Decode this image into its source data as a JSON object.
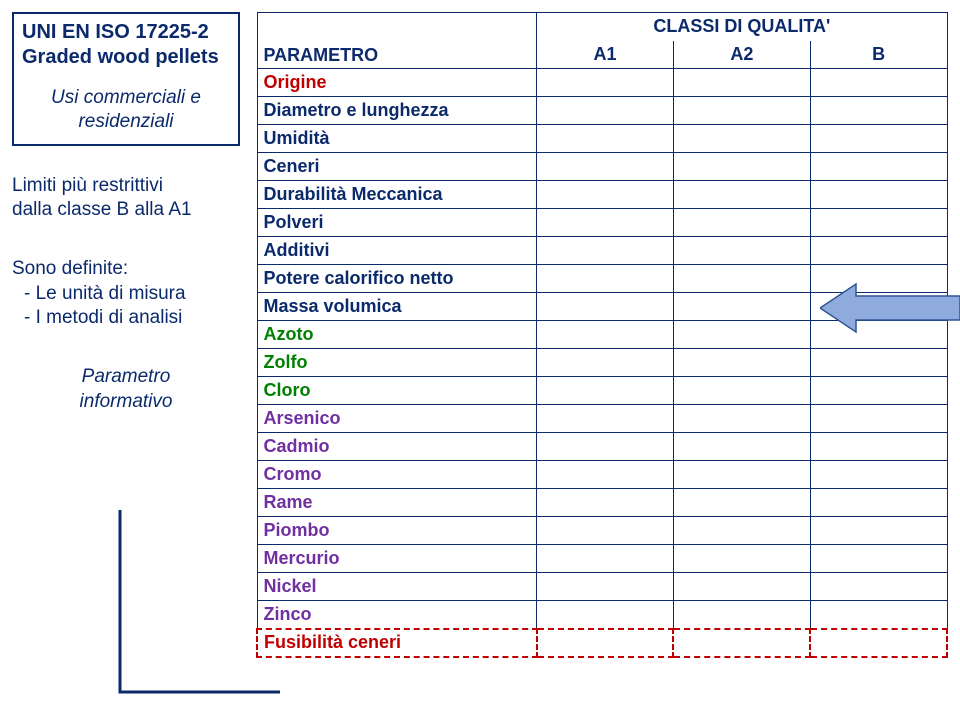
{
  "left": {
    "title_line1": "UNI EN ISO 17225-2",
    "title_line2": "Graded wood pellets",
    "sub_line1": "Usi commerciali e",
    "sub_line2": "residenziali",
    "limits_line1": "Limiti più restrittivi",
    "limits_line2": "dalla classe B alla A1",
    "defs_head": "Sono definite:",
    "defs_item1": "-  Le unità di misura",
    "defs_item2": "-  I metodi di analisi",
    "param_info_l1": "Parametro",
    "param_info_l2": "informativo"
  },
  "table": {
    "super_header": "CLASSI DI QUALITA'",
    "col_param": "PARAMETRO",
    "col_a1": "A1",
    "col_a2": "A2",
    "col_b": "B",
    "rows": [
      {
        "label": "Origine",
        "color": "c-red"
      },
      {
        "label": "Diametro e lunghezza",
        "color": "c-blue"
      },
      {
        "label": "Umidità",
        "color": "c-blue"
      },
      {
        "label": "Ceneri",
        "color": "c-blue"
      },
      {
        "label": "Durabilità Meccanica",
        "color": "c-blue"
      },
      {
        "label": "Polveri",
        "color": "c-blue"
      },
      {
        "label": "Additivi",
        "color": "c-blue"
      },
      {
        "label": "Potere calorifico netto",
        "color": "c-blue"
      },
      {
        "label": "Massa volumica",
        "color": "c-blue"
      },
      {
        "label": "Azoto",
        "color": "c-green"
      },
      {
        "label": "Zolfo",
        "color": "c-green"
      },
      {
        "label": "Cloro",
        "color": "c-green"
      },
      {
        "label": "Arsenico",
        "color": "c-violet"
      },
      {
        "label": "Cadmio",
        "color": "c-violet"
      },
      {
        "label": "Cromo",
        "color": "c-violet"
      },
      {
        "label": "Rame",
        "color": "c-violet"
      },
      {
        "label": "Piombo",
        "color": "c-violet"
      },
      {
        "label": "Mercurio",
        "color": "c-violet"
      },
      {
        "label": "Nickel",
        "color": "c-violet"
      },
      {
        "label": "Zinco",
        "color": "c-violet"
      }
    ],
    "fus_label": "Fusibilità ceneri"
  },
  "colors": {
    "navy": "#0b2a6b",
    "red": "#c00000",
    "green": "#008000",
    "violet": "#7030a0",
    "arrow_fill": "#8faadc",
    "arrow_stroke": "#2f5597"
  }
}
